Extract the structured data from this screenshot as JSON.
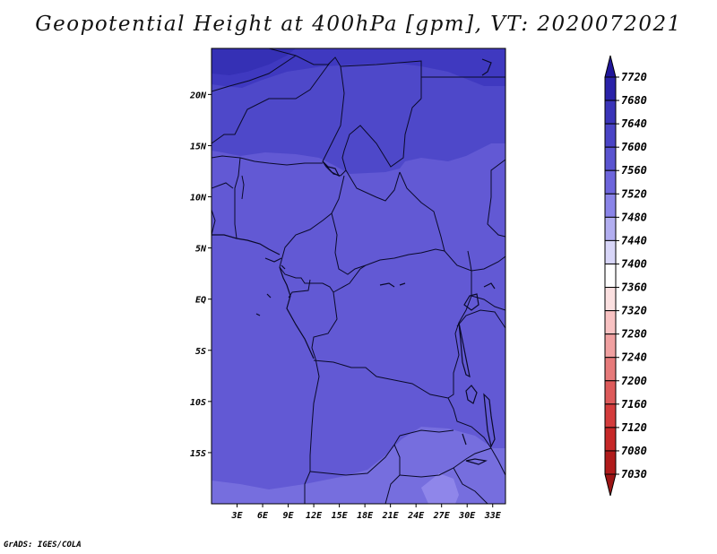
{
  "title": "Geopotential Height at 400hPa [gpm], VT: 2020072021",
  "footer": "GrADS: IGES/COLA",
  "axes": {
    "lat_labels": [
      "20N",
      "15N",
      "10N",
      "5N",
      "EQ",
      "5S",
      "10S",
      "15S"
    ],
    "lat_values": [
      20,
      15,
      10,
      5,
      0,
      -5,
      -10,
      -15
    ],
    "lon_labels": [
      "3E",
      "6E",
      "9E",
      "12E",
      "15E",
      "18E",
      "21E",
      "24E",
      "27E",
      "30E",
      "33E"
    ],
    "lon_values": [
      3,
      6,
      9,
      12,
      15,
      18,
      21,
      24,
      27,
      30,
      33
    ],
    "lat_range": [
      -20,
      24.5
    ],
    "lon_range": [
      0,
      34.5
    ]
  },
  "colorbar": {
    "levels": [
      "7720",
      "7680",
      "7640",
      "7600",
      "7560",
      "7520",
      "7480",
      "7440",
      "7400",
      "7360",
      "7320",
      "7280",
      "7240",
      "7200",
      "7160",
      "7120",
      "7080",
      "7030"
    ],
    "colors": [
      "#20169a",
      "#2a22a8",
      "#3a34b8",
      "#4a44c6",
      "#5a54d0",
      "#6d65dc",
      "#8a84e8",
      "#b2aef0",
      "#d8d6f8",
      "#ffffff",
      "#fbe0e0",
      "#f8c2c2",
      "#f0a0a0",
      "#e67a7a",
      "#dd5a5a",
      "#d43c3c",
      "#c62828",
      "#b01b1b",
      "#9c1414"
    ]
  },
  "field_colors": {
    "c7640": "#3f39c0",
    "c7600": "#4e48c9",
    "c7560": "#6259d4",
    "c7520": "#766ede",
    "c7480": "#8f86ea"
  }
}
